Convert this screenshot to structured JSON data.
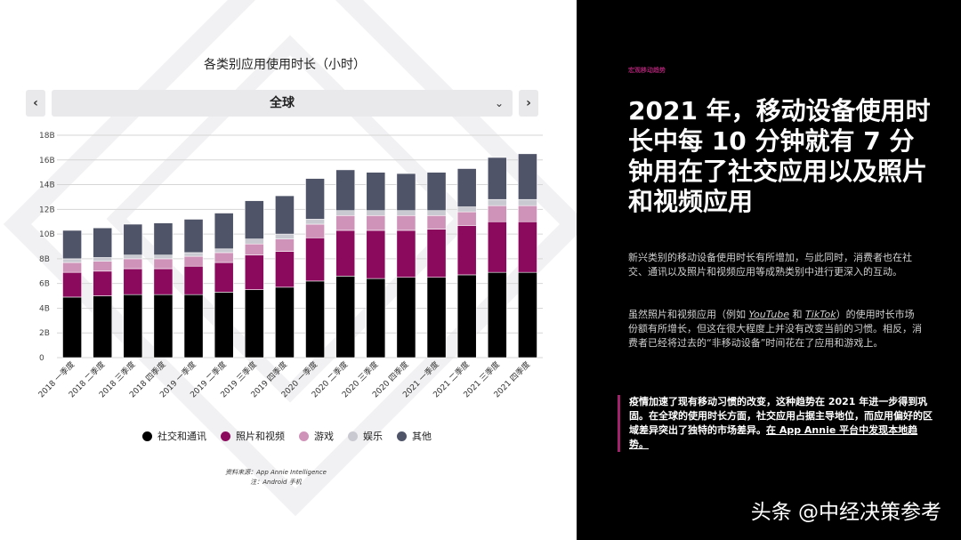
{
  "chart_data": {
    "type": "bar",
    "stacked": true,
    "title": "各类别应用使用时长（小时）",
    "categories": [
      "2018 一季度",
      "2018 二季度",
      "2018 三季度",
      "2018 四季度",
      "2019 一季度",
      "2019 二季度",
      "2019 三季度",
      "2019 四季度",
      "2020 一季度",
      "2020 二季度",
      "2020 三季度",
      "2020 四季度",
      "2021 一季度",
      "2021 二季度",
      "2021 三季度",
      "2021 四季度"
    ],
    "series": [
      {
        "name": "社交和通讯",
        "color": "#000000",
        "values": [
          4.9,
          5.0,
          5.1,
          5.1,
          5.1,
          5.3,
          5.5,
          5.7,
          6.2,
          6.6,
          6.4,
          6.5,
          6.5,
          6.7,
          6.9,
          6.9
        ]
      },
      {
        "name": "照片和视频",
        "color": "#8c0a5e",
        "values": [
          2.0,
          2.0,
          2.1,
          2.1,
          2.3,
          2.4,
          2.8,
          2.9,
          3.5,
          3.7,
          3.9,
          3.8,
          3.9,
          4.0,
          4.1,
          4.1
        ]
      },
      {
        "name": "游戏",
        "color": "#cf93b9",
        "values": [
          0.8,
          0.8,
          0.8,
          0.8,
          0.8,
          0.8,
          0.9,
          1.0,
          1.1,
          1.2,
          1.2,
          1.2,
          1.1,
          1.1,
          1.3,
          1.3
        ]
      },
      {
        "name": "娱乐",
        "color": "#c9c9d1",
        "values": [
          0.3,
          0.3,
          0.3,
          0.3,
          0.3,
          0.3,
          0.4,
          0.4,
          0.4,
          0.4,
          0.4,
          0.4,
          0.4,
          0.4,
          0.5,
          0.5
        ]
      },
      {
        "name": "其他",
        "color": "#4f5468",
        "values": [
          2.3,
          2.4,
          2.5,
          2.6,
          2.7,
          2.9,
          3.1,
          3.1,
          3.3,
          3.3,
          3.1,
          3.0,
          3.1,
          3.1,
          3.4,
          3.7
        ]
      }
    ],
    "y_ticks": [
      "0",
      "2B",
      "4B",
      "6B",
      "8B",
      "10B",
      "12B",
      "14B",
      "16B",
      "18B"
    ],
    "ylim": [
      0,
      18
    ],
    "grid": true,
    "legend_position": "bottom"
  },
  "chart": {
    "title": "各类别应用使用时长（小时）",
    "region": "全球",
    "prev_icon": "‹",
    "next_icon": "›",
    "dropdown_icon": "⌄",
    "source_line": "资料来源：App Annie Intelligence",
    "note_line": "注：Android 手机"
  },
  "article": {
    "kicker": "宏观移动趋势",
    "headline": "2021 年，移动设备使用时长中每 10 分钟就有 7 分钟用在了社交应用以及照片和视频应用",
    "p1": "新兴类别的移动设备使用时长有所增加，与此同时，消费者也在社交、通讯以及照片和视频应用等成熟类别中进行更深入的互动。",
    "p2_pre": "虽然照片和视频应用（例如 ",
    "p2_link1": "YouTube",
    "p2_and": " 和 ",
    "p2_link2": "TikTok",
    "p2_post": "）的使用时长市场份额有所增长，但这在很大程度上并没有改变当前的习惯。相反，消费者已经将过去的“非移动设备”时间花在了应用和游戏上。",
    "callout_main": "疫情加速了现有移动习惯的改变，这种趋势在 2021 年进一步得到巩固。在全球的使用时长方面，社交应用占据主导地位，而应用偏好的区域差异突出了独特的市场差异。",
    "callout_link": "在 App Annie 平台中发现本地趋势。"
  },
  "footer": {
    "text": "头条 @中经决策参考"
  }
}
